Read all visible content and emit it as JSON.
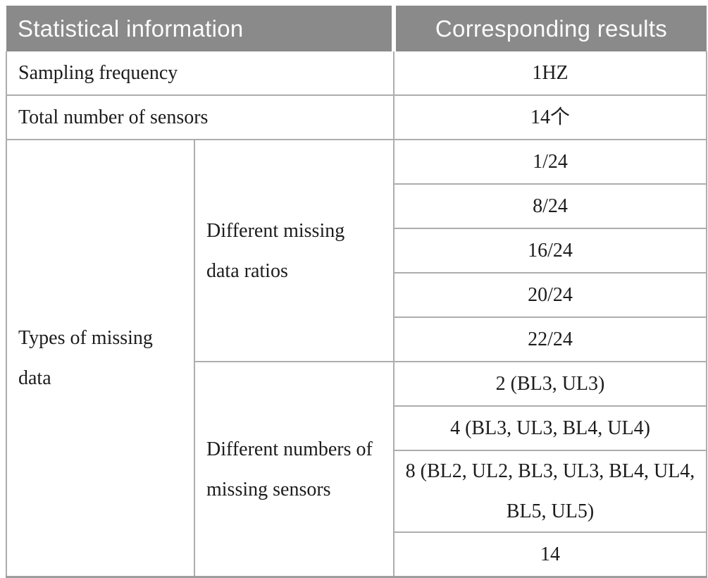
{
  "table": {
    "header": {
      "statistical": "Statistical information",
      "results": "Corresponding results"
    },
    "rows": {
      "sampling_frequency": {
        "label": "Sampling frequency",
        "value": "1HZ"
      },
      "total_sensors": {
        "label": "Total number of sensors",
        "value": "14个"
      },
      "types_of_missing_data": {
        "label": "Types of missing\ndata",
        "missing_ratios": {
          "label": "Different missing\ndata ratios",
          "values": [
            "1/24",
            "8/24",
            "16/24",
            "20/24",
            "22/24"
          ]
        },
        "missing_sensors": {
          "label": "Different numbers of\nmissing sensors",
          "values": [
            "2 (BL3, UL3)",
            "4 (BL3, UL3, BL4, UL4)",
            "8 (BL2, UL2, BL3, UL3, BL4, UL4,\nBL5, UL5)",
            "14"
          ]
        }
      }
    },
    "colors": {
      "header_bg": "#8a8a8a",
      "header_text": "#fbfbfb",
      "body_text": "#1c1c1c",
      "grid_line": "#adadad",
      "bottom_border": "#9e9e9e"
    }
  }
}
